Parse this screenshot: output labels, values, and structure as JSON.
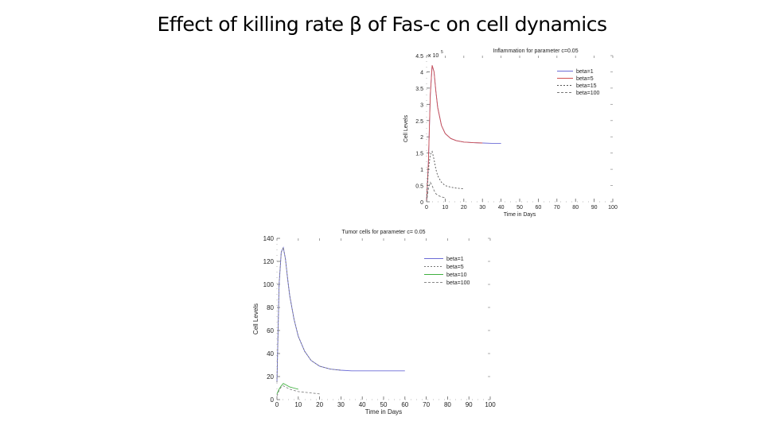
{
  "slide": {
    "title": "Effect of killing rate β of Fas-c on cell dynamics"
  },
  "chart_data": [
    {
      "type": "line",
      "title": "Inflammation for parameter c=0.05",
      "xlabel": "Time in Days",
      "ylabel": "Cell Levels",
      "exponent_label": "x 10",
      "exponent_power": "5",
      "xlim": [
        0,
        100
      ],
      "ylim": [
        0,
        4.5
      ],
      "xticks": [
        "0",
        "10",
        "20",
        "30",
        "40",
        "50",
        "60",
        "70",
        "80",
        "90",
        "100"
      ],
      "yticks": [
        "0",
        "0.5",
        "1",
        "1.5",
        "2",
        "2.5",
        "3",
        "3.5",
        "4",
        "4.5"
      ],
      "series": [
        {
          "name": "beta=1",
          "color": "#6b6bd6",
          "dash": "none",
          "x": [
            0,
            1,
            2,
            3,
            4,
            5,
            6,
            8,
            10,
            13,
            16,
            20,
            25,
            30,
            35,
            40
          ],
          "y": [
            0,
            1.2,
            3.3,
            4.2,
            4.0,
            3.4,
            2.9,
            2.35,
            2.1,
            1.95,
            1.88,
            1.84,
            1.82,
            1.81,
            1.8,
            1.8
          ]
        },
        {
          "name": "beta=5",
          "color": "#d05050",
          "dash": "none",
          "x": [
            0,
            1,
            2,
            3,
            4,
            5,
            6,
            8,
            10,
            13,
            16,
            20,
            25,
            30
          ],
          "y": [
            0,
            1.2,
            3.3,
            4.2,
            4.0,
            3.4,
            2.9,
            2.35,
            2.1,
            1.95,
            1.88,
            1.84,
            1.82,
            1.81
          ]
        },
        {
          "name": "beta=15",
          "color": "#555555",
          "dash": "2,2",
          "x": [
            0,
            1,
            2,
            3,
            4,
            5,
            6,
            8,
            10,
            13,
            16,
            20
          ],
          "y": [
            0,
            1.0,
            1.45,
            1.55,
            1.3,
            1.0,
            0.8,
            0.6,
            0.5,
            0.45,
            0.42,
            0.4
          ]
        },
        {
          "name": "beta=100",
          "color": "#777777",
          "dash": "3,2",
          "x": [
            0,
            1,
            2,
            3,
            4,
            5,
            6,
            8,
            10
          ],
          "y": [
            0,
            0.4,
            0.6,
            0.5,
            0.35,
            0.25,
            0.2,
            0.15,
            0.12
          ]
        }
      ]
    },
    {
      "type": "line",
      "title": "Tumor cells for parameter c= 0.05",
      "xlabel": "Time in Days",
      "ylabel": "Cell Levels",
      "xlim": [
        0,
        100
      ],
      "ylim": [
        0,
        140
      ],
      "xticks": [
        "0",
        "10",
        "20",
        "30",
        "40",
        "50",
        "60",
        "70",
        "80",
        "90",
        "100"
      ],
      "yticks": [
        "0",
        "20",
        "40",
        "60",
        "80",
        "100",
        "120",
        "140"
      ],
      "series": [
        {
          "name": "beta=1",
          "color": "#6b6bd6",
          "dash": "none",
          "x": [
            0,
            1,
            2,
            3,
            4,
            5,
            6,
            8,
            10,
            13,
            16,
            20,
            25,
            30,
            35,
            40,
            50,
            60
          ],
          "y": [
            15,
            100,
            128,
            132,
            122,
            105,
            90,
            70,
            55,
            42,
            34,
            29,
            26.5,
            25.5,
            25,
            25,
            25,
            25
          ]
        },
        {
          "name": "beta=5",
          "color": "#777777",
          "dash": "2,2",
          "x": [
            0,
            1,
            2,
            3,
            4,
            5,
            6,
            8,
            10,
            13,
            16,
            20,
            25,
            30
          ],
          "y": [
            15,
            100,
            128,
            132,
            122,
            105,
            90,
            70,
            55,
            42,
            34,
            29,
            26.5,
            25.5
          ]
        },
        {
          "name": "beta=10",
          "color": "#40b040",
          "dash": "none",
          "x": [
            0,
            1,
            2,
            3,
            4,
            5,
            6,
            8,
            10
          ],
          "y": [
            5,
            9,
            12,
            14,
            13,
            12,
            11,
            10,
            9
          ]
        },
        {
          "name": "beta=100",
          "color": "#888888",
          "dash": "3,2",
          "x": [
            0,
            1,
            2,
            3,
            4,
            5,
            6,
            8,
            10,
            15,
            20
          ],
          "y": [
            3,
            8,
            11,
            12,
            11,
            10,
            9,
            8,
            7,
            6,
            5
          ]
        }
      ]
    }
  ]
}
